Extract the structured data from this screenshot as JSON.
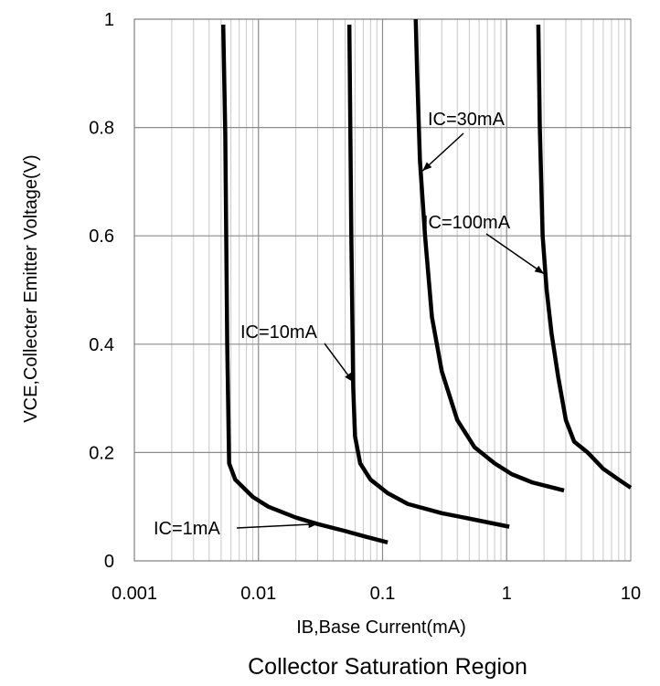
{
  "chart_data": {
    "type": "line",
    "title": "Collector Saturation Region",
    "xlabel": "IB,Base Current(mA)",
    "ylabel": "VCE,Collecter Emitter Voltage(V)",
    "xscale": "log",
    "xlim": [
      0.001,
      10
    ],
    "ylim": [
      0,
      1
    ],
    "x_ticks": [
      0.001,
      0.01,
      0.1,
      1,
      10
    ],
    "x_tick_labels": [
      "0.001",
      "0.01",
      "0.1",
      "1",
      "10"
    ],
    "y_ticks": [
      0,
      0.2,
      0.4,
      0.6,
      0.8,
      1
    ],
    "y_tick_labels": [
      "0",
      "0.2",
      "0.4",
      "0.6",
      "0.8",
      "1"
    ],
    "grid": true,
    "series": [
      {
        "name": "IC=1mA",
        "color": "#000000",
        "points": [
          [
            0.0052,
            0.99
          ],
          [
            0.0054,
            0.79
          ],
          [
            0.0056,
            0.4
          ],
          [
            0.0058,
            0.18
          ],
          [
            0.0065,
            0.15
          ],
          [
            0.009,
            0.118
          ],
          [
            0.012,
            0.1
          ],
          [
            0.02,
            0.08
          ],
          [
            0.03,
            0.068
          ],
          [
            0.05,
            0.055
          ],
          [
            0.075,
            0.044
          ],
          [
            0.11,
            0.034
          ]
        ]
      },
      {
        "name": "IC=10mA",
        "color": "#000000",
        "points": [
          [
            0.054,
            0.99
          ],
          [
            0.056,
            0.6
          ],
          [
            0.058,
            0.32
          ],
          [
            0.06,
            0.23
          ],
          [
            0.066,
            0.18
          ],
          [
            0.08,
            0.15
          ],
          [
            0.11,
            0.125
          ],
          [
            0.16,
            0.105
          ],
          [
            0.3,
            0.088
          ],
          [
            0.5,
            0.078
          ],
          [
            1.05,
            0.063
          ]
        ]
      },
      {
        "name": "IC=30mA",
        "color": "#000000",
        "points": [
          [
            0.185,
            1.0
          ],
          [
            0.19,
            0.9
          ],
          [
            0.2,
            0.74
          ],
          [
            0.22,
            0.6
          ],
          [
            0.25,
            0.45
          ],
          [
            0.3,
            0.35
          ],
          [
            0.4,
            0.26
          ],
          [
            0.55,
            0.21
          ],
          [
            0.8,
            0.18
          ],
          [
            1.1,
            0.16
          ],
          [
            1.6,
            0.145
          ],
          [
            2.9,
            0.13
          ]
        ]
      },
      {
        "name": "IC=100mA",
        "color": "#000000",
        "points": [
          [
            1.8,
            0.99
          ],
          [
            1.85,
            0.8
          ],
          [
            1.95,
            0.6
          ],
          [
            2.1,
            0.5
          ],
          [
            2.3,
            0.42
          ],
          [
            2.6,
            0.34
          ],
          [
            3.0,
            0.26
          ],
          [
            3.5,
            0.22
          ],
          [
            4.5,
            0.2
          ],
          [
            6.0,
            0.17
          ],
          [
            8.0,
            0.15
          ],
          [
            10.0,
            0.135
          ]
        ]
      }
    ],
    "annotations": [
      {
        "text": "IC=1mA",
        "target": [
          0.03,
          0.068
        ]
      },
      {
        "text": "IC=10mA",
        "target": [
          0.058,
          0.33
        ]
      },
      {
        "text": "IC=30mA",
        "target": [
          0.21,
          0.72
        ]
      },
      {
        "text": "IC=100mA",
        "target": [
          2.0,
          0.53
        ]
      }
    ]
  }
}
